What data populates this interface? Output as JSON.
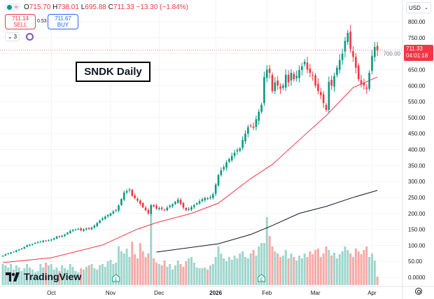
{
  "header": {
    "ohlc": [
      {
        "k": "O",
        "v": "715.70"
      },
      {
        "k": "H",
        "v": "738.01"
      },
      {
        "k": "L",
        "v": "695.88"
      },
      {
        "k": "C",
        "v": "711.33"
      }
    ],
    "change": "−13.30 (−1.84%)",
    "sell_price": "711.14",
    "sell_label": "SELL",
    "spread": "0.53",
    "buy_price": "711.67",
    "buy_label": "BUY",
    "indicator_count": "3",
    "currency": "USD"
  },
  "title_box": "SNDK Daily",
  "logo_text": "TradingView",
  "last_price": {
    "value": "711.33",
    "countdown": "04:01:18"
  },
  "colors": {
    "up": "#089981",
    "down": "#f23645",
    "ma_fast": "#f23645",
    "ma_slow": "#131722",
    "up_volume": "#9ed6cc",
    "down_volume": "#f7a9a7"
  },
  "chart_data": {
    "type": "candlestick",
    "title": "SNDK Daily",
    "y_ticks": [
      "800.00",
      "750.00",
      "700.00",
      "650.00",
      "600.00",
      "550.00",
      "500.00",
      "450.00",
      "400.00",
      "350.00",
      "300.00",
      "250.00",
      "200.00",
      "150.00",
      "100.00",
      "50.00",
      "0.0000"
    ],
    "ylim": [
      0,
      800
    ],
    "x_ticks": [
      {
        "label": "Oct",
        "bar": 18
      },
      {
        "label": "Nov",
        "bar": 40
      },
      {
        "label": "Dec",
        "bar": 58
      },
      {
        "label": "2026",
        "bar": 79,
        "bold": true
      },
      {
        "label": "Feb",
        "bar": 98
      },
      {
        "label": "Mar",
        "bar": 116
      },
      {
        "label": "Apr",
        "bar": 137
      }
    ],
    "earnings_markers": [
      {
        "label": "E",
        "bar": 42
      },
      {
        "label": "E",
        "bar": 96
      }
    ],
    "close": [
      68,
      72,
      75,
      78,
      80,
      84,
      87,
      90,
      95,
      100,
      102,
      104,
      108,
      110,
      112,
      115,
      113,
      116,
      118,
      122,
      128,
      126,
      130,
      134,
      140,
      145,
      148,
      150,
      152,
      147,
      150,
      153,
      151,
      155,
      162,
      170,
      178,
      184,
      190,
      195,
      200,
      206,
      210,
      225,
      245,
      265,
      270,
      275,
      255,
      248,
      240,
      230,
      219,
      210,
      200,
      226,
      222,
      215,
      217,
      214,
      210,
      218,
      224,
      228,
      236,
      243,
      230,
      218,
      210,
      214,
      220,
      226,
      232,
      238,
      244,
      248,
      245,
      250,
      260,
      290,
      320,
      335,
      345,
      360,
      370,
      380,
      390,
      398,
      403,
      430,
      450,
      470,
      474,
      468,
      495,
      518,
      540,
      627,
      650,
      640,
      583,
      610,
      600,
      590,
      600,
      634,
      610,
      640,
      620,
      630,
      649,
      660,
      675,
      650,
      640,
      632,
      600,
      583,
      570,
      545,
      524,
      612,
      600,
      630,
      656,
      680,
      700,
      740,
      765,
      715,
      690,
      656,
      620,
      605,
      600,
      590,
      640,
      693,
      721,
      711.33
    ],
    "volume_relative": [
      30,
      28,
      25,
      30,
      22,
      28,
      25,
      20,
      24,
      30,
      25,
      22,
      18,
      20,
      30,
      25,
      32,
      28,
      30,
      22,
      25,
      20,
      28,
      24,
      22,
      30,
      26,
      20,
      18,
      24,
      22,
      26,
      28,
      30,
      24,
      22,
      28,
      30,
      26,
      34,
      36,
      30,
      32,
      55,
      48,
      45,
      52,
      40,
      62,
      44,
      38,
      60,
      48,
      40,
      45,
      100,
      38,
      32,
      30,
      28,
      35,
      26,
      30,
      22,
      28,
      35,
      30,
      26,
      34,
      38,
      40,
      32,
      25,
      24,
      24,
      25,
      22,
      28,
      30,
      40,
      55,
      45,
      38,
      34,
      40,
      36,
      42,
      38,
      45,
      48,
      40,
      38,
      45,
      50,
      42,
      55,
      60,
      60,
      97,
      70,
      55,
      48,
      45,
      40,
      42,
      50,
      38,
      45,
      40,
      35,
      42,
      38,
      45,
      40,
      48,
      44,
      50,
      52,
      40,
      45,
      55,
      50,
      42,
      46,
      38,
      44,
      48,
      55,
      50,
      45,
      40,
      52,
      48,
      44,
      50,
      55,
      40,
      45,
      35,
      12
    ],
    "ma_fast": [
      {
        "bar": 0,
        "value": 46
      },
      {
        "bar": 18,
        "value": 61
      },
      {
        "bar": 37,
        "value": 101
      },
      {
        "bar": 50,
        "value": 151
      },
      {
        "bar": 57,
        "value": 171
      },
      {
        "bar": 70,
        "value": 200
      },
      {
        "bar": 80,
        "value": 232
      },
      {
        "bar": 92,
        "value": 309
      },
      {
        "bar": 100,
        "value": 353
      },
      {
        "bar": 110,
        "value": 430
      },
      {
        "bar": 120,
        "value": 506
      },
      {
        "bar": 130,
        "value": 594
      },
      {
        "bar": 139,
        "value": 627
      }
    ],
    "ma_slow": [
      {
        "bar": 57,
        "value": 79
      },
      {
        "bar": 80,
        "value": 105
      },
      {
        "bar": 92,
        "value": 134
      },
      {
        "bar": 100,
        "value": 162
      },
      {
        "bar": 110,
        "value": 200
      },
      {
        "bar": 120,
        "value": 222
      },
      {
        "bar": 130,
        "value": 250
      },
      {
        "bar": 139,
        "value": 272
      }
    ]
  }
}
